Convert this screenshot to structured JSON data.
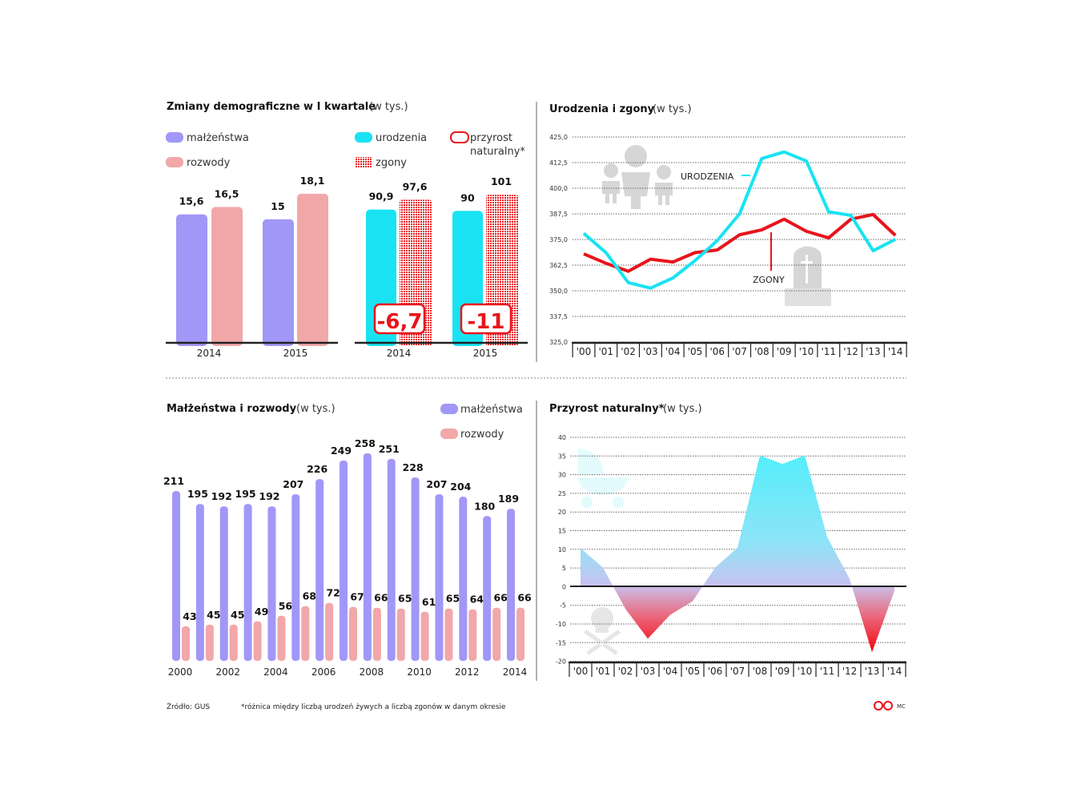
{
  "colors": {
    "malzenstwa": "#a197f7",
    "rozwody": "#f2a7a9",
    "urodzenia": "#19e3f2",
    "zgony": "#e8141b",
    "axis": "#222222"
  },
  "chart_data": [
    {
      "type": "bar",
      "title": "Zmiany demograficzne w I kwartale",
      "subtitle": "(w tys.)",
      "categories": [
        "2014",
        "2015"
      ],
      "series": [
        {
          "name": "małżeństwa",
          "values": [
            15.6,
            15
          ]
        },
        {
          "name": "rozwody",
          "values": [
            16.5,
            18.1
          ]
        }
      ],
      "value_labels": [
        [
          "15,6",
          "15"
        ],
        [
          "16,5",
          "18,1"
        ]
      ]
    },
    {
      "type": "bar",
      "categories": [
        "2014",
        "2015"
      ],
      "series": [
        {
          "name": "urodzenia",
          "values": [
            90.9,
            90
          ]
        },
        {
          "name": "zgony",
          "values": [
            97.6,
            101
          ]
        }
      ],
      "value_labels": [
        [
          "90,9",
          "90"
        ],
        [
          "97,6",
          "101"
        ]
      ],
      "przyrost": {
        "name": "przyrost naturalny*",
        "name_line1": "przyrost",
        "name_line2": "naturalny*",
        "values": [
          -6.7,
          -11
        ],
        "labels": [
          "-6,7",
          "-11"
        ]
      }
    },
    {
      "type": "line",
      "title": "Urodzenia i zgony",
      "subtitle": "(w tys.)",
      "categories": [
        "'00",
        "'01",
        "'02",
        "'03",
        "'04",
        "'05",
        "'06",
        "'07",
        "'08",
        "'09",
        "'10",
        "'11",
        "'12",
        "'13",
        "'14"
      ],
      "yticks": [
        "425,0",
        "412,5",
        "400,0",
        "387,5",
        "375,0",
        "362,5",
        "350,0",
        "337,5",
        "325,0"
      ],
      "ylim": [
        325,
        425
      ],
      "grid": true,
      "series": [
        {
          "name": "URODZENIA",
          "values": [
            378,
            368.6,
            354,
            351.3,
            356.2,
            364.7,
            374.5,
            387.5,
            414.5,
            417.7,
            413.3,
            388.5,
            386.8,
            369.5,
            375.1
          ]
        },
        {
          "name": "ZGONY",
          "values": [
            368,
            363.4,
            359.5,
            365.4,
            364,
            368.6,
            369.9,
            377.3,
            379.7,
            384.9,
            379,
            375.8,
            384.9,
            387.2,
            377
          ]
        }
      ]
    },
    {
      "type": "bar",
      "title": "Małżeństwa i rozwody",
      "subtitle": "(w tys.)",
      "categories": [
        "2000",
        "2001",
        "2002",
        "2003",
        "2004",
        "2005",
        "2006",
        "2007",
        "2008",
        "2009",
        "2010",
        "2011",
        "2012",
        "2013",
        "2014"
      ],
      "xtick_labels": [
        "2000",
        "2002",
        "2004",
        "2006",
        "2008",
        "2010",
        "2012",
        "2014"
      ],
      "series": [
        {
          "name": "małżeństwa",
          "values": [
            211,
            195,
            192,
            195,
            192,
            207,
            226,
            249,
            258,
            251,
            228,
            207,
            204,
            180,
            189
          ]
        },
        {
          "name": "rozwody",
          "values": [
            43,
            45,
            45,
            49,
            56,
            68,
            72,
            67,
            66,
            65,
            61,
            65,
            64,
            66,
            66
          ]
        }
      ]
    },
    {
      "type": "area",
      "title": "Przyrost naturalny*",
      "subtitle": "(w tys.)",
      "categories": [
        "'00",
        "'01",
        "'02",
        "'03",
        "'04",
        "'05",
        "'06",
        "'07",
        "'08",
        "'09",
        "'10",
        "'11",
        "'12",
        "'13",
        "'14"
      ],
      "yticks": [
        "40",
        "35",
        "30",
        "25",
        "20",
        "15",
        "10",
        "5",
        "0",
        "-5",
        "-10",
        "-15",
        "-20"
      ],
      "ylim": [
        -20,
        40
      ],
      "grid": true,
      "values": [
        10.2,
        5,
        -6,
        -14,
        -7.6,
        -4,
        5,
        10.3,
        35,
        32.7,
        35,
        13.2,
        2,
        -17.6,
        -1.2
      ]
    }
  ],
  "footer": {
    "source": "Źródło: GUS",
    "note": "*różnica między liczbą urodzeń żywych a liczbą zgonów w danym okresie",
    "author": "MC"
  }
}
